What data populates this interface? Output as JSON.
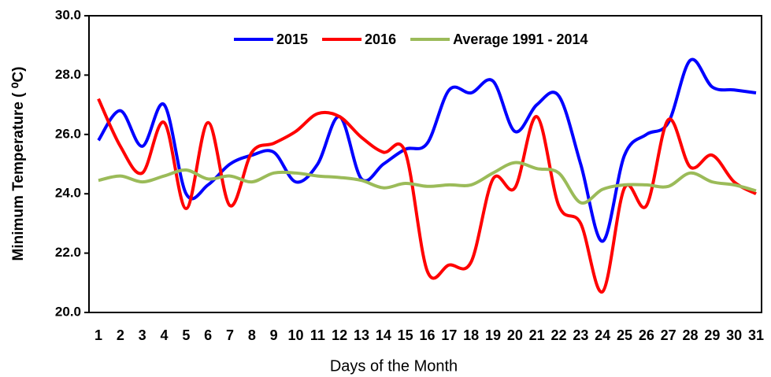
{
  "chart_data": {
    "type": "line",
    "x_label": "Days of the Month",
    "y_label": "Minimum Temperature ( ⁰C)",
    "categories": [
      "1",
      "2",
      "3",
      "4",
      "5",
      "6",
      "7",
      "8",
      "9",
      "10",
      "11",
      "12",
      "13",
      "14",
      "15",
      "16",
      "17",
      "18",
      "19",
      "20",
      "21",
      "22",
      "23",
      "24",
      "25",
      "26",
      "27",
      "28",
      "29",
      "30",
      "31"
    ],
    "series": [
      {
        "name": "2015",
        "color": "#0000ff",
        "values": [
          25.8,
          26.8,
          25.6,
          27.0,
          24.0,
          24.3,
          25.0,
          25.3,
          25.4,
          24.4,
          25.0,
          26.6,
          24.5,
          25.0,
          25.5,
          25.7,
          27.5,
          27.4,
          27.8,
          26.1,
          27.0,
          27.3,
          25.0,
          22.4,
          25.3,
          26.0,
          26.4,
          28.5,
          27.6,
          27.5,
          27.4
        ]
      },
      {
        "name": "2016",
        "color": "#ff0000",
        "values": [
          27.2,
          25.6,
          24.7,
          26.4,
          23.5,
          26.4,
          23.6,
          25.4,
          25.7,
          26.1,
          26.7,
          26.6,
          25.9,
          25.4,
          25.4,
          21.4,
          21.6,
          21.7,
          24.5,
          24.2,
          26.6,
          23.6,
          23.0,
          20.7,
          24.2,
          23.6,
          26.5,
          24.9,
          25.3,
          24.4,
          24.0
        ]
      },
      {
        "name": "Average 1991 - 2014",
        "color": "#9bbb59",
        "values": [
          24.45,
          24.6,
          24.4,
          24.6,
          24.8,
          24.5,
          24.6,
          24.4,
          24.7,
          24.7,
          24.6,
          24.55,
          24.45,
          24.2,
          24.35,
          24.25,
          24.3,
          24.3,
          24.7,
          25.05,
          24.85,
          24.7,
          23.7,
          24.15,
          24.3,
          24.3,
          24.25,
          24.7,
          24.4,
          24.3,
          24.1
        ]
      }
    ],
    "ylim": [
      20,
      30
    ],
    "yticks": [
      {
        "value": 20,
        "label": "20.0"
      },
      {
        "value": 22,
        "label": "22.0"
      },
      {
        "value": 24,
        "label": "24.0"
      },
      {
        "value": 26,
        "label": "26.0"
      },
      {
        "value": 28,
        "label": "28.0"
      },
      {
        "value": 30,
        "label": "30.0"
      }
    ],
    "legend": "top",
    "smooth": true
  }
}
